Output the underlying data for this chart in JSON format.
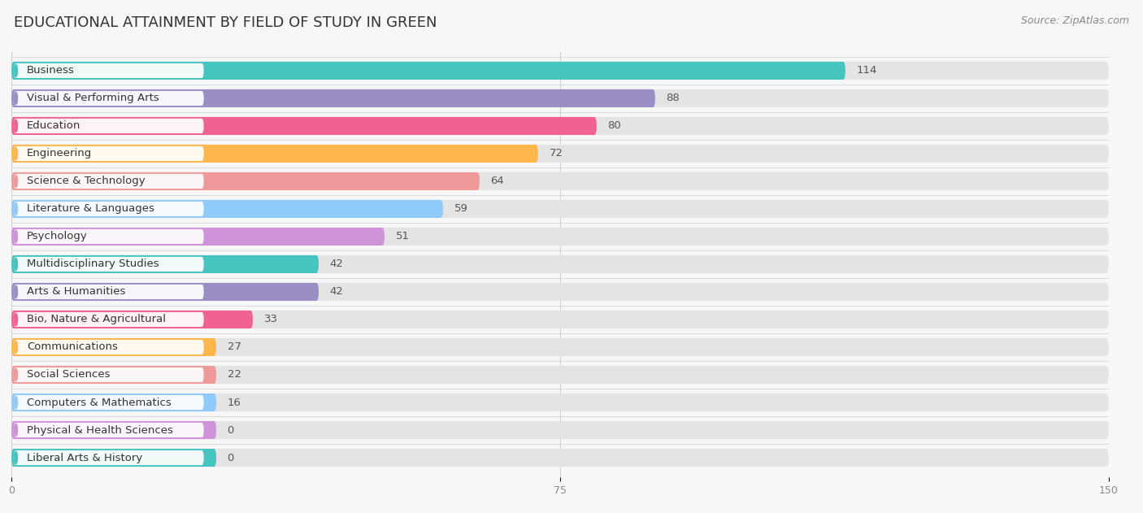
{
  "title": "EDUCATIONAL ATTAINMENT BY FIELD OF STUDY IN GREEN",
  "source": "Source: ZipAtlas.com",
  "categories": [
    "Business",
    "Visual & Performing Arts",
    "Education",
    "Engineering",
    "Science & Technology",
    "Literature & Languages",
    "Psychology",
    "Multidisciplinary Studies",
    "Arts & Humanities",
    "Bio, Nature & Agricultural",
    "Communications",
    "Social Sciences",
    "Computers & Mathematics",
    "Physical & Health Sciences",
    "Liberal Arts & History"
  ],
  "values": [
    114,
    88,
    80,
    72,
    64,
    59,
    51,
    42,
    42,
    33,
    27,
    22,
    16,
    0,
    0
  ],
  "bar_colors": [
    "#45C4C0",
    "#9B8EC4",
    "#F06292",
    "#FFB74D",
    "#EF9A9A",
    "#90CAF9",
    "#CE93D8",
    "#45C4C0",
    "#9B8EC4",
    "#F06292",
    "#FFB74D",
    "#EF9A9A",
    "#90CAF9",
    "#CE93D8",
    "#45C4C0"
  ],
  "xlim": [
    0,
    150
  ],
  "xticks": [
    0,
    75,
    150
  ],
  "bg_color": "#f7f7f7",
  "bar_bg_color": "#e4e4e4",
  "title_fontsize": 13,
  "label_fontsize": 9.5,
  "value_fontsize": 9.5,
  "source_fontsize": 9
}
